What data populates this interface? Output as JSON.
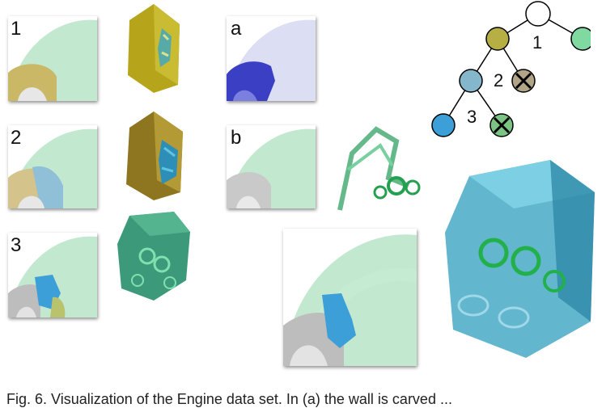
{
  "panels": {
    "p1": "1",
    "p2": "2",
    "p3": "3",
    "pa": "a",
    "pb": "b"
  },
  "tree": {
    "edge1": "1",
    "edge2": "2",
    "edge3": "3"
  },
  "caption": "Fig. 6.   Visualization of the Engine data set. In (a) the wall is carved ..."
}
